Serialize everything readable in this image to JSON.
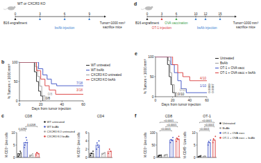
{
  "diagrams": [
    {
      "header": "WT or CXCR3 KO",
      "ticks": [
        0,
        3,
        6,
        9
      ],
      "events": [
        {
          "label": "B16 engraftment",
          "at": [
            0
          ],
          "color": "#222222"
        },
        {
          "label": "bsAb injection",
          "at": [
            3,
            6,
            9
          ],
          "color": "#3a7fd0"
        }
      ],
      "end_label": [
        "Tumor>1000 mm³",
        "sacrifice mice"
      ]
    },
    {
      "panel": "d",
      "ticks": [
        0,
        3,
        6,
        10,
        12,
        15
      ],
      "events": [
        {
          "label": "B16 engraftment",
          "at": [
            0
          ],
          "color": "#222222"
        },
        {
          "label": "OT-1 injection",
          "at": [
            3
          ],
          "color": "#d93a3a"
        },
        {
          "label": "OVA vaccination",
          "at": [
            6
          ],
          "color": "#3aa04a"
        },
        {
          "label": "bsAb injection",
          "at": [
            10,
            12,
            15
          ],
          "color": "#3a7fd0"
        }
      ],
      "end_label": [
        "Tumor>1000 mm³",
        "sacrifice mice"
      ]
    }
  ],
  "chart_data": [
    {
      "panel": "b",
      "type": "line",
      "xlabel": "Days from tumor injection",
      "ylabel": "% Tumors < 1000 mm³",
      "xlim": [
        0,
        60
      ],
      "xticks": [
        0,
        20,
        40,
        60
      ],
      "ylim": [
        0,
        100
      ],
      "yticks": [
        0,
        50,
        100
      ],
      "legend": "right",
      "series": [
        {
          "name": "WT untreated",
          "color": "#222222",
          "x": [
            0,
            14,
            14,
            16,
            16,
            18,
            18,
            20,
            20,
            22,
            22
          ],
          "values": [
            100,
            100,
            75,
            75,
            50,
            50,
            25,
            25,
            12.5,
            12.5,
            0
          ],
          "end_label": "0/8"
        },
        {
          "name": "WT bsAb",
          "color": "#3a4fc4",
          "x": [
            0,
            18,
            18,
            22,
            22,
            26,
            26,
            30,
            30,
            35,
            35,
            60
          ],
          "values": [
            100,
            100,
            83,
            83,
            67,
            67,
            56,
            56,
            44,
            44,
            39,
            39
          ],
          "end_label": "7/18"
        },
        {
          "name": "CXCR3 KO untreated",
          "color": "#9a9a9a",
          "x": [
            0,
            15,
            15,
            17,
            17,
            19,
            19,
            21,
            21,
            24,
            24
          ],
          "values": [
            100,
            100,
            88,
            88,
            63,
            63,
            38,
            38,
            13,
            13,
            0
          ],
          "end_label": "0/8"
        },
        {
          "name": "CXCR3 KO bsAb",
          "color": "#d93a3a",
          "x": [
            0,
            16,
            16,
            20,
            20,
            24,
            24,
            28,
            28,
            34,
            34,
            60
          ],
          "values": [
            100,
            100,
            78,
            78,
            56,
            56,
            39,
            39,
            28,
            28,
            17,
            17
          ],
          "end_label": "3/18"
        }
      ]
    },
    {
      "panel": "c",
      "type": "bar",
      "title": "CD8",
      "ylabel": "% CD3⁺ Live cells",
      "categories": [
        "WT untreated",
        "WT bsAb",
        "CXCR3 KO untreated",
        "CXCR3 KO bsAb"
      ],
      "values": [
        1.5,
        6,
        1,
        1.6
      ],
      "colors": [
        "#222222",
        "#3a4fc4",
        "#9a9a9a",
        "#d93a3a"
      ],
      "points": [
        [
          0.5,
          1,
          2,
          1.5,
          2.5
        ],
        [
          4,
          6,
          7,
          5,
          8,
          6
        ],
        [
          0.5,
          1,
          1.5,
          0.8
        ],
        [
          1,
          2,
          1.5,
          2
        ]
      ],
      "ylim": [
        0,
        10
      ],
      "yticks": [
        0,
        5,
        10
      ],
      "tick_labels": "y",
      "legend": "right",
      "comparisons": [
        {
          "from": 0,
          "to": 1,
          "label": "0.0294"
        },
        {
          "from": 1,
          "to": 3,
          "label": "0.0208"
        }
      ]
    },
    {
      "type": "bar",
      "title": "CD4",
      "ylabel": "% CD3⁺ Live cells",
      "categories": [
        "WT untreated",
        "WT bsAb",
        "CXCR3 KO untreated",
        "CXCR3 KO bsAb"
      ],
      "values": [
        1,
        3,
        1,
        1.5
      ],
      "colors": [
        "#222222",
        "#3a4fc4",
        "#9a9a9a",
        "#d93a3a"
      ],
      "points": [
        [
          0.5,
          1,
          1.5,
          1
        ],
        [
          2,
          3,
          4,
          3.5,
          2.5
        ],
        [
          0.8,
          1,
          1.2
        ],
        [
          1,
          2,
          1.5
        ]
      ],
      "ylim": [
        0,
        6
      ],
      "yticks": [
        0,
        2,
        4,
        6
      ],
      "tick_labels": "y"
    },
    {
      "panel": "e",
      "type": "line",
      "xlabel": "Days from tumor injection",
      "ylabel": "% Tumors < 1000 mm³",
      "xlim": [
        0,
        60
      ],
      "xticks": [
        0,
        20,
        40,
        60
      ],
      "ylim": [
        0,
        100
      ],
      "yticks": [
        0,
        50,
        100
      ],
      "legend": "right",
      "annotations": [
        "0.0009",
        "0.0007"
      ],
      "series": [
        {
          "name": "Untreated",
          "color": "#222222",
          "x": [
            0,
            14,
            14,
            16,
            16,
            18,
            18,
            20,
            20,
            23,
            23
          ],
          "values": [
            100,
            100,
            80,
            80,
            50,
            50,
            30,
            30,
            10,
            10,
            0
          ],
          "end_label": "0/10"
        },
        {
          "name": "BsAb",
          "color": "#9a9a9a",
          "x": [
            0,
            15,
            15,
            17,
            17,
            19,
            19,
            22,
            22,
            25,
            25
          ],
          "values": [
            100,
            100,
            90,
            90,
            60,
            60,
            30,
            30,
            10,
            10,
            0
          ],
          "end_label": "0/10"
        },
        {
          "name": "OT-1 + OVA vacc",
          "color": "#3a4fc4",
          "x": [
            0,
            18,
            18,
            22,
            22,
            26,
            26,
            30,
            30,
            36,
            36,
            60
          ],
          "values": [
            100,
            100,
            80,
            80,
            60,
            60,
            40,
            40,
            20,
            20,
            10,
            10
          ],
          "end_label": "1/10"
        },
        {
          "name": "OT-1 + OVA vacc + bsAb",
          "color": "#d93a3a",
          "x": [
            0,
            20,
            20,
            26,
            26,
            32,
            32,
            40,
            40,
            60
          ],
          "values": [
            100,
            100,
            80,
            80,
            60,
            60,
            50,
            50,
            40,
            40
          ],
          "end_label": "4/10"
        }
      ]
    },
    {
      "panel": "f",
      "type": "bar",
      "title": "CD8",
      "ylabel": "% CD3⁺ Live cells",
      "categories": [
        "Untreated",
        "BsAb",
        "OT-1 + OVA vacc",
        "OT-1 + OVA vacc + bsAb"
      ],
      "values": [
        8,
        10,
        70,
        75
      ],
      "colors": [
        "#222222",
        "#9a9a9a",
        "#3a4fc4",
        "#d93a3a"
      ],
      "points": [
        [
          5,
          8,
          10,
          9
        ],
        [
          7,
          10,
          12,
          11
        ],
        [
          60,
          70,
          80,
          72,
          68
        ],
        [
          65,
          75,
          85,
          78,
          72
        ]
      ],
      "ylim": [
        0,
        100
      ],
      "yticks": [
        0,
        50,
        100
      ],
      "tick_labels": "y",
      "comparisons": [
        {
          "from": 0,
          "to": 2,
          "label": "<0.0001"
        },
        {
          "from": 1,
          "to": 3,
          "label": "<0.0001"
        },
        {
          "from": 0,
          "to": 3,
          "label": "<0.0001"
        }
      ]
    },
    {
      "type": "bar",
      "title": "OT-1",
      "ylabel": "% CD45⁺ Live cells",
      "categories": [
        "Untreated",
        "BsAb",
        "OT-1 + OVA vacc",
        "OT-1 + OVA vacc + bsAb"
      ],
      "values": [
        0.5,
        0.5,
        6,
        7
      ],
      "colors": [
        "#222222",
        "#9a9a9a",
        "#3a4fc4",
        "#d93a3a"
      ],
      "points": [
        [
          0.3,
          0.5,
          0.7
        ],
        [
          0.4,
          0.6,
          0.5
        ],
        [
          5,
          6,
          7,
          6.5
        ],
        [
          6,
          7,
          8.5,
          7.5
        ]
      ],
      "ylim": [
        0,
        10
      ],
      "yticks": [
        0,
        5,
        10
      ],
      "tick_labels": "y",
      "legend": "right",
      "comparisons": [
        {
          "from": 0,
          "to": 2,
          "label": "<0.0001"
        },
        {
          "from": 1,
          "to": 3,
          "label": "<0.0001"
        },
        {
          "from": 0,
          "to": 3,
          "label": "<0.0001"
        }
      ]
    }
  ]
}
